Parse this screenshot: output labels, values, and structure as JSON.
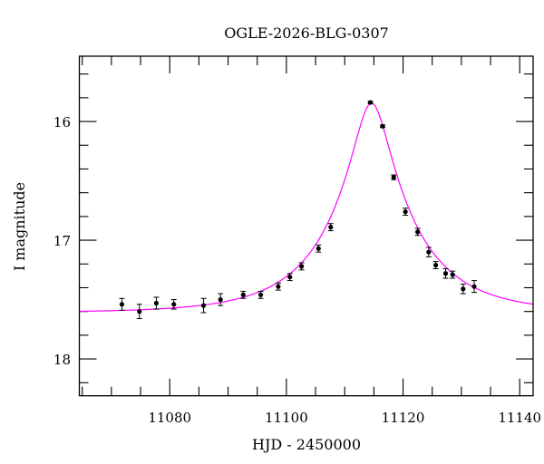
{
  "chart_data": {
    "type": "scatter",
    "title": "OGLE-2026-BLG-0307",
    "xlabel": "HJD - 2450000",
    "ylabel": "I magnitude",
    "xlim": [
      11064.5,
      11142.3
    ],
    "ylim": [
      18.31,
      15.45
    ],
    "y_inverted": true,
    "x_ticks": [
      11080,
      11100,
      11120,
      11140
    ],
    "x_minor_step": 5,
    "y_ticks": [
      16,
      17,
      18
    ],
    "y_minor_step": 0.2,
    "grid": false,
    "point_color": "#000000",
    "model_color": "#ff00ff",
    "points": [
      {
        "x": 11071.8,
        "y": 17.54,
        "err": 0.05
      },
      {
        "x": 11074.8,
        "y": 17.6,
        "err": 0.06
      },
      {
        "x": 11077.7,
        "y": 17.53,
        "err": 0.05
      },
      {
        "x": 11080.7,
        "y": 17.54,
        "err": 0.04
      },
      {
        "x": 11085.8,
        "y": 17.55,
        "err": 0.06
      },
      {
        "x": 11088.7,
        "y": 17.5,
        "err": 0.05
      },
      {
        "x": 11092.6,
        "y": 17.46,
        "err": 0.03
      },
      {
        "x": 11095.6,
        "y": 17.46,
        "err": 0.03
      },
      {
        "x": 11098.6,
        "y": 17.39,
        "err": 0.03
      },
      {
        "x": 11100.6,
        "y": 17.31,
        "err": 0.03
      },
      {
        "x": 11102.6,
        "y": 17.22,
        "err": 0.03
      },
      {
        "x": 11105.5,
        "y": 17.07,
        "err": 0.03
      },
      {
        "x": 11107.6,
        "y": 16.89,
        "err": 0.03
      },
      {
        "x": 11114.4,
        "y": 15.84,
        "err": 0.01
      },
      {
        "x": 11116.5,
        "y": 16.04,
        "err": 0.01
      },
      {
        "x": 11118.4,
        "y": 16.47,
        "err": 0.02
      },
      {
        "x": 11120.4,
        "y": 16.76,
        "err": 0.03
      },
      {
        "x": 11122.5,
        "y": 16.93,
        "err": 0.03
      },
      {
        "x": 11124.4,
        "y": 17.1,
        "err": 0.04
      },
      {
        "x": 11125.6,
        "y": 17.21,
        "err": 0.03
      },
      {
        "x": 11127.3,
        "y": 17.28,
        "err": 0.04
      },
      {
        "x": 11128.5,
        "y": 17.29,
        "err": 0.03
      },
      {
        "x": 11130.3,
        "y": 17.41,
        "err": 0.04
      },
      {
        "x": 11132.2,
        "y": 17.39,
        "err": 0.05
      }
    ],
    "model": {
      "type": "point-lens",
      "t0": 11114.6,
      "u0": 0.2,
      "tE": 14.5,
      "I0": 17.61
    }
  }
}
